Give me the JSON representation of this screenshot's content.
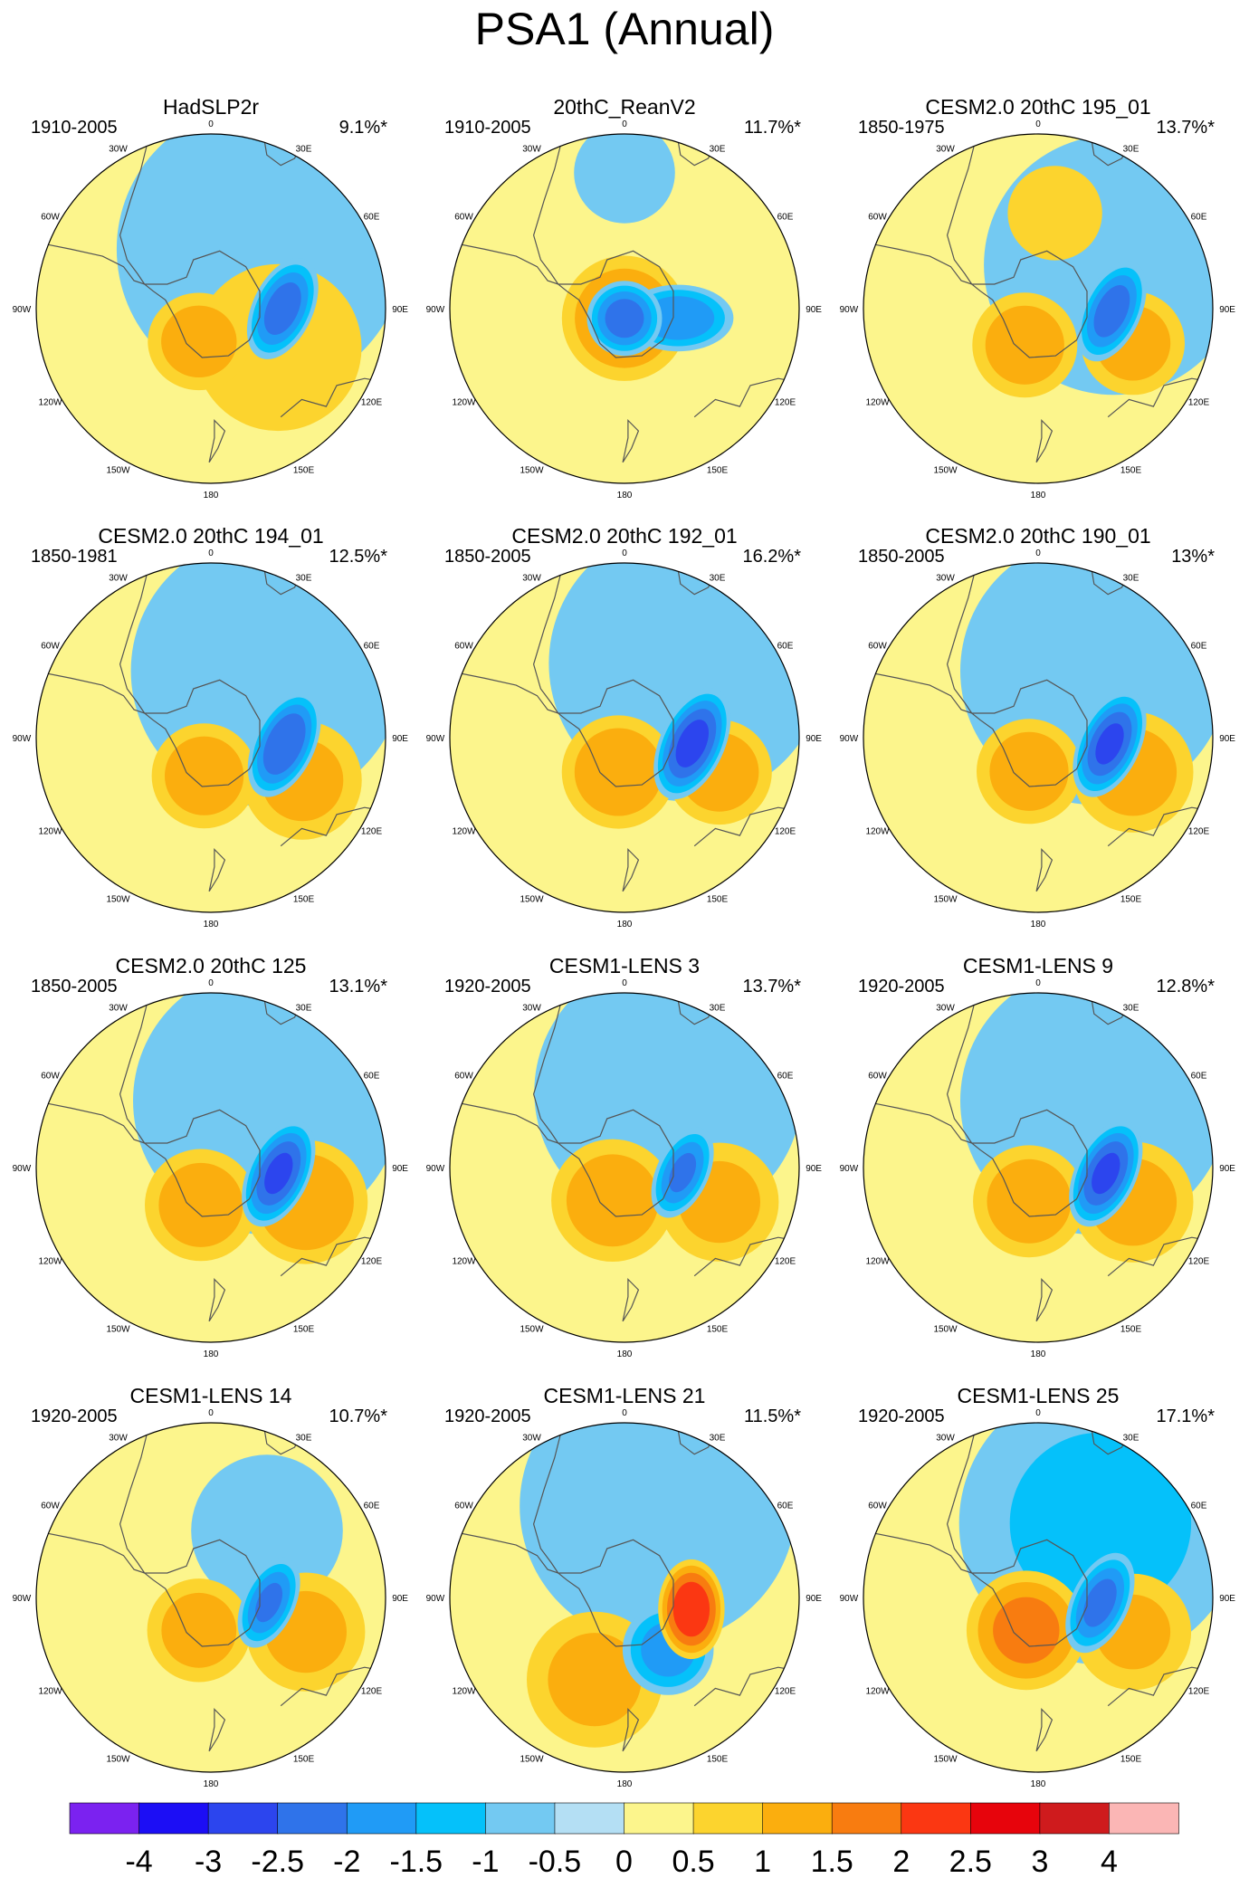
{
  "chart_data": {
    "type": "heatmap",
    "title": "PSA1 (Annual)",
    "projection": "south polar stereographic",
    "longitude_labels": [
      "0",
      "30E",
      "60E",
      "90E",
      "120E",
      "150E",
      "180",
      "150W",
      "120W",
      "90W",
      "60W",
      "30W"
    ],
    "colorbar": {
      "ticks": [
        "-4",
        "-3",
        "-2.5",
        "-2",
        "-1.5",
        "-1",
        "-0.5",
        "0",
        "0.5",
        "1",
        "1.5",
        "2",
        "2.5",
        "3",
        "4"
      ],
      "colors": [
        "#7b22f0",
        "#1c0ef5",
        "#2c45ee",
        "#2f73ea",
        "#209bf6",
        "#05c1fa",
        "#73c9f2",
        "#b4dff4",
        "#fcf58c",
        "#fcd42e",
        "#fbae0e",
        "#f87c10",
        "#fb3712",
        "#e7040c",
        "#cf1b1d",
        "#fbb6b5"
      ]
    },
    "panels": [
      {
        "name": "HadSLP2r",
        "period": "1910-2005",
        "variance": "9.1%*",
        "blobs": [
          {
            "lon": 90,
            "lat": -53,
            "r": 0.23,
            "sx": 0.7,
            "sy": 1.25,
            "rot": 25,
            "amp": -2.2
          },
          {
            "lon": 200,
            "lat": -72,
            "r": 0.28,
            "sx": 1.05,
            "sy": 1.0,
            "rot": 0,
            "amp": 1.25
          },
          {
            "lon": 40,
            "lat": -50,
            "r": 0.9,
            "sx": 1.0,
            "sy": 1.0,
            "rot": 0,
            "amp": -0.85
          },
          {
            "lon": 120,
            "lat": -50,
            "r": 0.55,
            "sx": 1.0,
            "sy": 1.0,
            "rot": 0,
            "amp": 0.7
          }
        ]
      },
      {
        "name": "20thC_ReanV2",
        "period": "1910-2005",
        "variance": "11.7%*",
        "blobs": [
          {
            "lon": 100,
            "lat": -62,
            "r": 0.2,
            "sx": 1.5,
            "sy": 0.9,
            "rot": 0,
            "amp": -1.9
          },
          {
            "lon": 180,
            "lat": -85,
            "r": 0.35,
            "sx": 1.0,
            "sy": 1.0,
            "rot": 0,
            "amp": 1.5
          },
          {
            "lon": 180,
            "lat": -85,
            "r": 0.2,
            "sx": 1.0,
            "sy": 1.0,
            "rot": 0,
            "amp": -2.2
          },
          {
            "lon": 0,
            "lat": -20,
            "r": 0.35,
            "sx": 1.0,
            "sy": 1.0,
            "rot": 0,
            "amp": -0.6
          }
        ]
      },
      {
        "name": "CESM2.0 20thC 195_01",
        "period": "1850-1975",
        "variance": "13.7%*",
        "blobs": [
          {
            "lon": 92,
            "lat": -52,
            "r": 0.22,
            "sx": 0.7,
            "sy": 1.3,
            "rot": 25,
            "amp": -2.2
          },
          {
            "lon": 200,
            "lat": -70,
            "r": 0.3,
            "sx": 1.0,
            "sy": 1.0,
            "rot": 0,
            "amp": 1.3
          },
          {
            "lon": 110,
            "lat": -38,
            "r": 0.3,
            "sx": 1.0,
            "sy": 1.0,
            "rot": 0,
            "amp": 1.2
          },
          {
            "lon": 60,
            "lat": -45,
            "r": 0.8,
            "sx": 1.0,
            "sy": 1.0,
            "rot": 0,
            "amp": -0.9
          },
          {
            "lon": 10,
            "lat": -40,
            "r": 0.3,
            "sx": 1.0,
            "sy": 1.0,
            "rot": 0,
            "amp": 0.8
          }
        ]
      },
      {
        "name": "CESM2.0 20thC 194_01",
        "period": "1850-1981",
        "variance": "12.5%*",
        "blobs": [
          {
            "lon": 95,
            "lat": -52,
            "r": 0.23,
            "sx": 0.7,
            "sy": 1.3,
            "rot": 25,
            "amp": -2.4
          },
          {
            "lon": 190,
            "lat": -70,
            "r": 0.3,
            "sx": 1.0,
            "sy": 1.0,
            "rot": 0,
            "amp": 1.3
          },
          {
            "lon": 115,
            "lat": -38,
            "r": 0.35,
            "sx": 1.0,
            "sy": 1.0,
            "rot": 0,
            "amp": 1.1
          },
          {
            "lon": 40,
            "lat": -45,
            "r": 0.85,
            "sx": 1.0,
            "sy": 1.0,
            "rot": 0,
            "amp": -0.85
          }
        ]
      },
      {
        "name": "CESM2.0 20thC 192_01",
        "period": "1850-2005",
        "variance": "16.2%*",
        "blobs": [
          {
            "lon": 95,
            "lat": -55,
            "r": 0.24,
            "sx": 0.7,
            "sy": 1.3,
            "rot": 25,
            "amp": -2.6
          },
          {
            "lon": 190,
            "lat": -72,
            "r": 0.32,
            "sx": 1.0,
            "sy": 1.0,
            "rot": 0,
            "amp": 1.4
          },
          {
            "lon": 110,
            "lat": -38,
            "r": 0.3,
            "sx": 1.0,
            "sy": 1.0,
            "rot": 0,
            "amp": 1.3
          },
          {
            "lon": 40,
            "lat": -40,
            "r": 0.85,
            "sx": 1.0,
            "sy": 1.0,
            "rot": 0,
            "amp": -0.9
          }
        ]
      },
      {
        "name": "CESM2.0 20thC 190_01",
        "period": "1850-2005",
        "variance": "13%*",
        "blobs": [
          {
            "lon": 95,
            "lat": -53,
            "r": 0.23,
            "sx": 0.7,
            "sy": 1.3,
            "rot": 25,
            "amp": -2.5
          },
          {
            "lon": 195,
            "lat": -72,
            "r": 0.3,
            "sx": 1.0,
            "sy": 1.0,
            "rot": 0,
            "amp": 1.3
          },
          {
            "lon": 110,
            "lat": -38,
            "r": 0.35,
            "sx": 1.0,
            "sy": 1.0,
            "rot": 0,
            "amp": 1.2
          },
          {
            "lon": 40,
            "lat": -45,
            "r": 0.85,
            "sx": 1.0,
            "sy": 1.0,
            "rot": 0,
            "amp": -0.8
          }
        ]
      },
      {
        "name": "CESM2.0 20thC 125",
        "period": "1850-2005",
        "variance": "13.1%*",
        "blobs": [
          {
            "lon": 95,
            "lat": -55,
            "r": 0.23,
            "sx": 0.7,
            "sy": 1.3,
            "rot": 25,
            "amp": -2.5
          },
          {
            "lon": 195,
            "lat": -70,
            "r": 0.32,
            "sx": 1.0,
            "sy": 1.0,
            "rot": 0,
            "amp": 1.3
          },
          {
            "lon": 110,
            "lat": -38,
            "r": 0.35,
            "sx": 1.0,
            "sy": 1.0,
            "rot": 0,
            "amp": 1.4
          },
          {
            "lon": 40,
            "lat": -45,
            "r": 0.85,
            "sx": 1.0,
            "sy": 1.0,
            "rot": 0,
            "amp": -0.8
          }
        ]
      },
      {
        "name": "CESM1-LENS 3",
        "period": "1920-2005",
        "variance": "13.7%*",
        "blobs": [
          {
            "lon": 95,
            "lat": -60,
            "r": 0.2,
            "sx": 0.7,
            "sy": 1.3,
            "rot": 25,
            "amp": -2.0
          },
          {
            "lon": 200,
            "lat": -72,
            "r": 0.35,
            "sx": 1.0,
            "sy": 1.0,
            "rot": 0,
            "amp": 1.3
          },
          {
            "lon": 110,
            "lat": -38,
            "r": 0.35,
            "sx": 1.0,
            "sy": 1.0,
            "rot": 0,
            "amp": 1.1
          },
          {
            "lon": 30,
            "lat": -45,
            "r": 0.85,
            "sx": 1.0,
            "sy": 1.0,
            "rot": 0,
            "amp": -0.8
          }
        ]
      },
      {
        "name": "CESM1-LENS 9",
        "period": "1920-2005",
        "variance": "12.8%*",
        "blobs": [
          {
            "lon": 95,
            "lat": -55,
            "r": 0.23,
            "sx": 0.7,
            "sy": 1.3,
            "rot": 25,
            "amp": -2.5
          },
          {
            "lon": 195,
            "lat": -72,
            "r": 0.32,
            "sx": 1.0,
            "sy": 1.0,
            "rot": 0,
            "amp": 1.3
          },
          {
            "lon": 110,
            "lat": -38,
            "r": 0.35,
            "sx": 1.0,
            "sy": 1.0,
            "rot": 0,
            "amp": 1.2
          },
          {
            "lon": 40,
            "lat": -45,
            "r": 0.85,
            "sx": 1.0,
            "sy": 1.0,
            "rot": 0,
            "amp": -0.8
          }
        ]
      },
      {
        "name": "CESM1-LENS 14",
        "period": "1920-2005",
        "variance": "10.7%*",
        "blobs": [
          {
            "lon": 95,
            "lat": -60,
            "r": 0.2,
            "sx": 0.7,
            "sy": 1.3,
            "rot": 25,
            "amp": -2.0
          },
          {
            "lon": 200,
            "lat": -72,
            "r": 0.3,
            "sx": 1.0,
            "sy": 1.0,
            "rot": 0,
            "amp": 1.2
          },
          {
            "lon": 110,
            "lat": -38,
            "r": 0.35,
            "sx": 1.0,
            "sy": 1.0,
            "rot": 0,
            "amp": 1.1
          },
          {
            "lon": 40,
            "lat": -45,
            "r": 0.5,
            "sx": 1.0,
            "sy": 1.0,
            "rot": 0,
            "amp": -0.7
          }
        ]
      },
      {
        "name": "CESM1-LENS 21",
        "period": "1920-2005",
        "variance": "11.5%*",
        "blobs": [
          {
            "lon": 100,
            "lat": -55,
            "r": 0.22,
            "sx": 0.8,
            "sy": 1.2,
            "rot": 0,
            "amp": 2.3
          },
          {
            "lon": 140,
            "lat": -55,
            "r": 0.25,
            "sx": 1.0,
            "sy": 1.0,
            "rot": 0,
            "amp": -1.7
          },
          {
            "lon": 200,
            "lat": -45,
            "r": 0.4,
            "sx": 1.0,
            "sy": 1.0,
            "rot": 0,
            "amp": 1.1
          },
          {
            "lon": 20,
            "lat": -40,
            "r": 0.85,
            "sx": 1.0,
            "sy": 1.0,
            "rot": 0,
            "amp": -0.9
          }
        ]
      },
      {
        "name": "CESM1-LENS 25",
        "period": "1920-2005",
        "variance": "17.1%*",
        "blobs": [
          {
            "lon": 95,
            "lat": -58,
            "r": 0.22,
            "sx": 0.7,
            "sy": 1.3,
            "rot": 25,
            "amp": -2.1
          },
          {
            "lon": 200,
            "lat": -72,
            "r": 0.33,
            "sx": 1.0,
            "sy": 1.0,
            "rot": 0,
            "amp": 1.6
          },
          {
            "lon": 110,
            "lat": -38,
            "r": 0.35,
            "sx": 1.0,
            "sy": 1.0,
            "rot": 0,
            "amp": 1.0
          },
          {
            "lon": 40,
            "lat": -40,
            "r": 0.85,
            "sx": 1.0,
            "sy": 1.0,
            "rot": 0,
            "amp": -1.0
          }
        ]
      }
    ]
  }
}
